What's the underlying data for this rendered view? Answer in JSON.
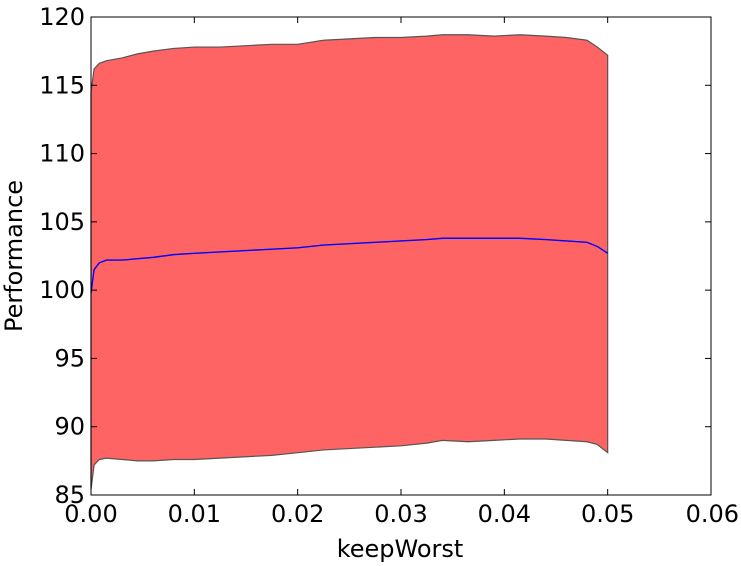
{
  "chart_data": {
    "type": "area",
    "xlabel": "keepWorst",
    "ylabel": "Performance",
    "xlim": [
      0.0,
      0.06
    ],
    "ylim": [
      85,
      120
    ],
    "xticks": [
      0.0,
      0.01,
      0.02,
      0.03,
      0.04,
      0.05,
      0.06
    ],
    "xtick_labels": [
      "0.00",
      "0.01",
      "0.02",
      "0.03",
      "0.04",
      "0.05",
      "0.06"
    ],
    "yticks": [
      85,
      90,
      95,
      100,
      105,
      110,
      115,
      120
    ],
    "ytick_labels": [
      "85",
      "90",
      "95",
      "100",
      "105",
      "110",
      "115",
      "120"
    ],
    "grid": false,
    "series": [
      {
        "role": "band",
        "color": "#ff6464",
        "edge_color": "#555555",
        "x": [
          0.0,
          0.0003,
          0.0008,
          0.0015,
          0.003,
          0.0045,
          0.006,
          0.008,
          0.01,
          0.0125,
          0.015,
          0.0175,
          0.02,
          0.0225,
          0.025,
          0.0275,
          0.03,
          0.0325,
          0.034,
          0.0365,
          0.039,
          0.0415,
          0.044,
          0.046,
          0.048,
          0.049,
          0.05
        ],
        "upper": [
          114.5,
          116.2,
          116.6,
          116.8,
          117.0,
          117.3,
          117.5,
          117.7,
          117.8,
          117.8,
          117.9,
          118.0,
          118.0,
          118.3,
          118.4,
          118.5,
          118.5,
          118.6,
          118.7,
          118.7,
          118.6,
          118.7,
          118.6,
          118.5,
          118.3,
          117.8,
          117.2
        ],
        "lower": [
          85.4,
          87.2,
          87.6,
          87.7,
          87.6,
          87.5,
          87.5,
          87.6,
          87.6,
          87.7,
          87.8,
          87.9,
          88.1,
          88.3,
          88.4,
          88.5,
          88.6,
          88.8,
          89.0,
          88.9,
          89.0,
          89.1,
          89.1,
          89.0,
          88.9,
          88.7,
          88.1
        ]
      },
      {
        "role": "mean",
        "color": "#0000ff",
        "x": [
          0.0,
          0.0003,
          0.0008,
          0.0015,
          0.003,
          0.0045,
          0.006,
          0.008,
          0.01,
          0.0125,
          0.015,
          0.0175,
          0.02,
          0.0225,
          0.025,
          0.0275,
          0.03,
          0.0325,
          0.034,
          0.0365,
          0.039,
          0.0415,
          0.044,
          0.046,
          0.048,
          0.049,
          0.05
        ],
        "values": [
          99.8,
          101.5,
          102.0,
          102.2,
          102.2,
          102.3,
          102.4,
          102.6,
          102.7,
          102.8,
          102.9,
          103.0,
          103.1,
          103.3,
          103.4,
          103.5,
          103.6,
          103.7,
          103.8,
          103.8,
          103.8,
          103.8,
          103.7,
          103.6,
          103.5,
          103.2,
          102.7
        ]
      }
    ]
  }
}
